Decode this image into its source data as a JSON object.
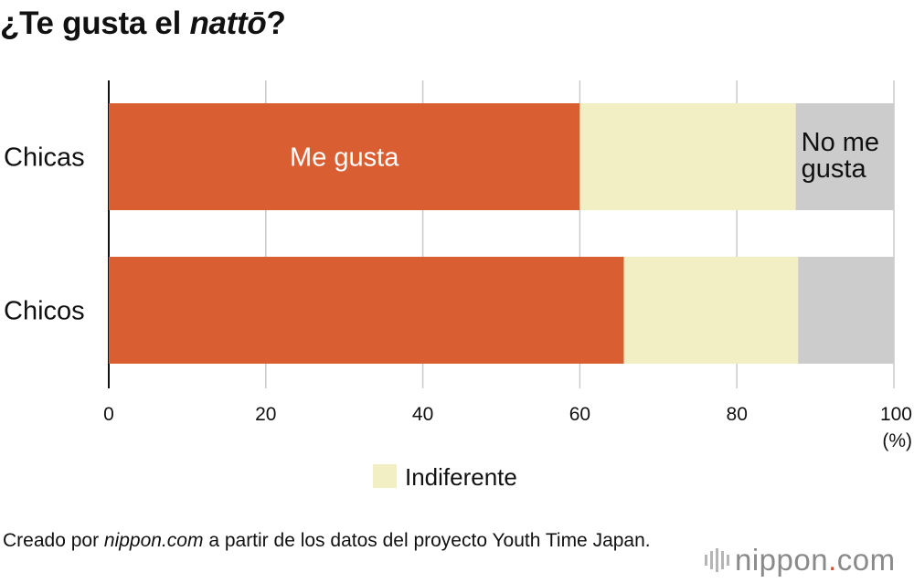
{
  "title": {
    "prefix": "¿Te gusta el ",
    "emphasis": "nattō",
    "suffix": "?"
  },
  "chart_data": {
    "type": "bar",
    "orientation": "horizontal",
    "stacked": true,
    "categories": [
      "Chicas",
      "Chicos"
    ],
    "series": [
      {
        "name": "Me gusta",
        "values": [
          60,
          65.6
        ],
        "color": "#d95f33"
      },
      {
        "name": "Indiferente",
        "values": [
          27.5,
          22.2
        ],
        "color": "#f2efc4"
      },
      {
        "name": "No me gusta",
        "values": [
          12.5,
          12.2
        ],
        "color": "#cccccc"
      }
    ],
    "xticks": [
      "0",
      "20",
      "40",
      "60",
      "80",
      "100"
    ],
    "xlim": [
      0,
      100
    ],
    "xunit": "(%)",
    "grid": true,
    "inline_labels": [
      "Me gusta",
      "No me gusta"
    ],
    "legend": [
      {
        "label": "Indiferente",
        "color": "#f2efc4"
      }
    ]
  },
  "source": {
    "prefix": "Creado por ",
    "site": "nippon.com",
    "suffix": " a partir de los datos del proyecto Youth Time Japan."
  },
  "brand": {
    "name": "nippon",
    "dot": ".",
    "tld": "com"
  }
}
